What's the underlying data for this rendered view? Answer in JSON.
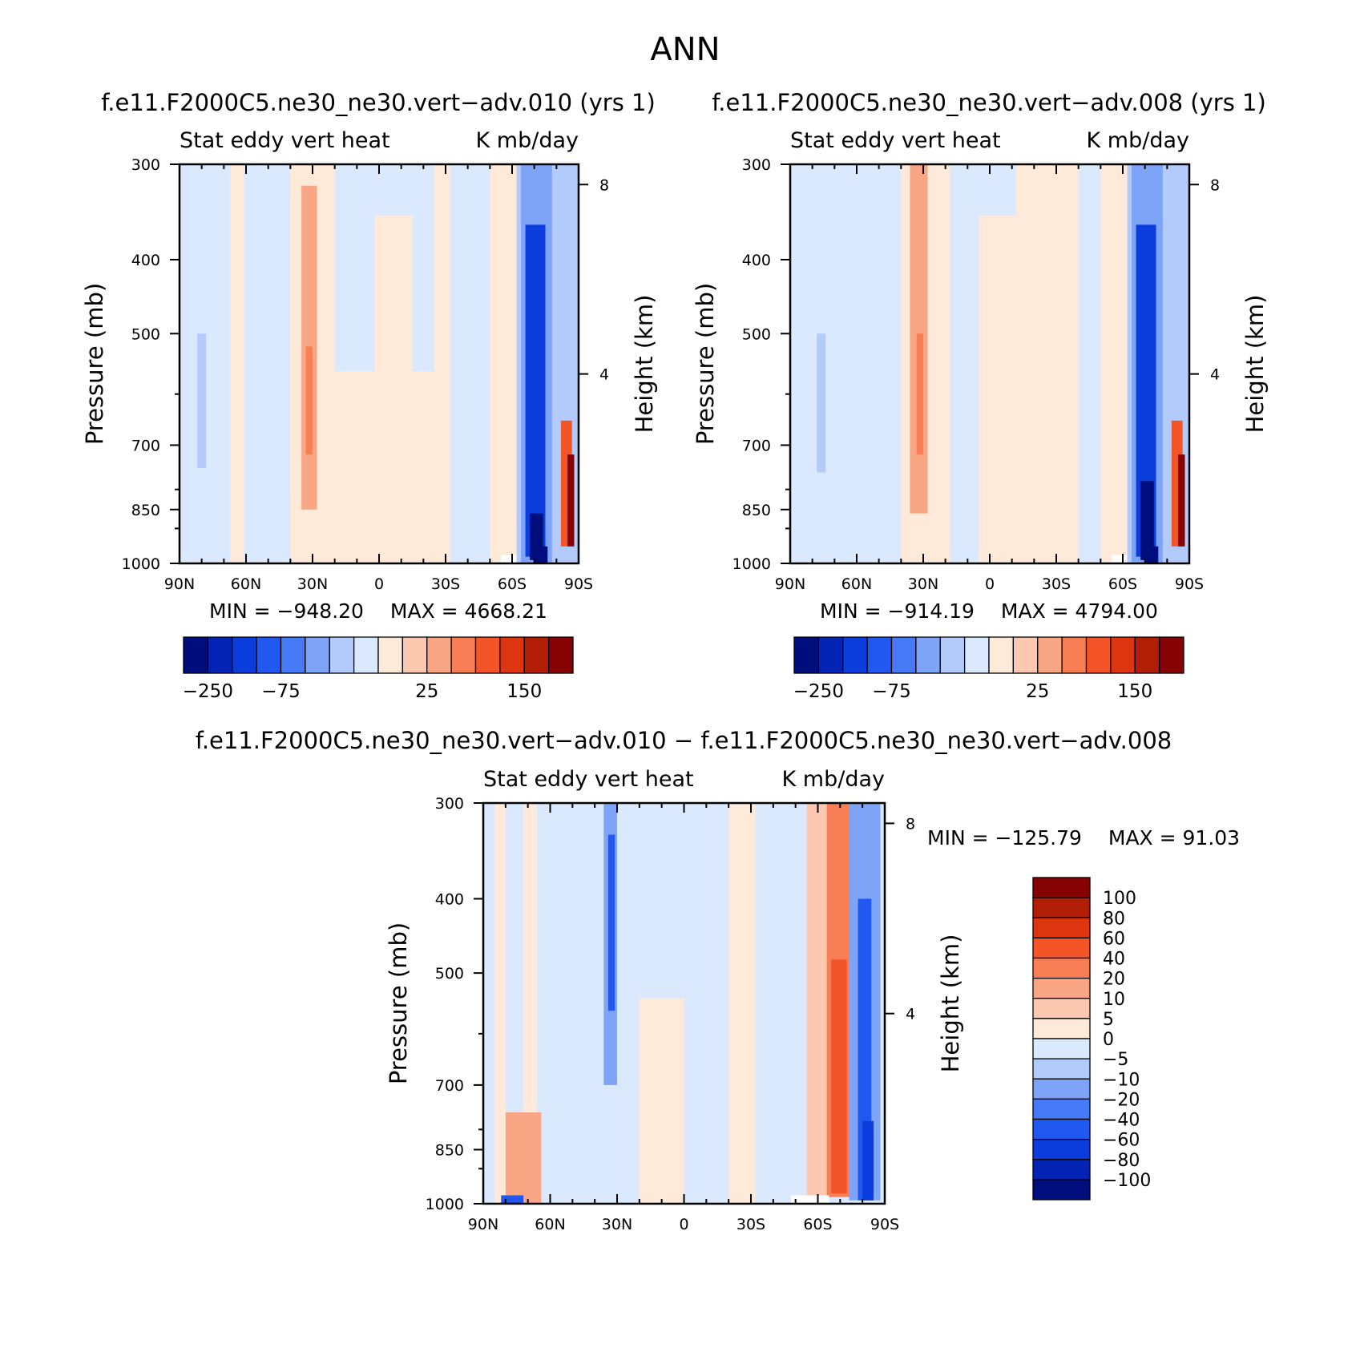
{
  "figure_title": "ANN",
  "palettes": {
    "abs": [
      "#000e7d",
      "#0223b3",
      "#0a3ddb",
      "#2158f0",
      "#4579f5",
      "#7ea4f8",
      "#b3cbfb",
      "#dbe9fe",
      "#ffead9",
      "#fdc8b0",
      "#f9a685",
      "#f77e55",
      "#f45528",
      "#dc3510",
      "#b21d05",
      "#850203"
    ],
    "diff": [
      "#000e7d",
      "#0223b3",
      "#0a3ddb",
      "#2158f0",
      "#4579f5",
      "#7ea4f8",
      "#b3cbfb",
      "#dbe9fe",
      "#ffead9",
      "#fdc8b0",
      "#f9a685",
      "#f77e55",
      "#f45528",
      "#dc3510",
      "#b21d05",
      "#850203"
    ]
  },
  "chart_data": [
    {
      "type": "heatmap",
      "panel": "top-left",
      "title": "f.e11.F2000C5.ne30_ne30.vert−adv.010 (yrs 1)",
      "left_string": "Stat eddy vert heat",
      "right_string": "K mb/day",
      "ylabel": "Pressure (mb)",
      "y2label": "Height (km)",
      "xlim": [
        90,
        -90
      ],
      "ylim": [
        1000,
        300
      ],
      "y_log": true,
      "xticks": [
        "90N",
        "60N",
        "30N",
        "0",
        "30S",
        "60S",
        "90S"
      ],
      "yticks": [
        "300",
        "400",
        "500",
        "700",
        "850",
        "1000"
      ],
      "y2ticks": [
        "8",
        "4"
      ],
      "min_label": "MIN = −948.20",
      "max_label": "MAX = 4668.21",
      "colorbar_ticks": [
        "−250",
        "−75",
        "25",
        "150"
      ],
      "fields": [
        {
          "type": "band",
          "lat": [
            90,
            -62
          ],
          "lev": [
            300,
            1000
          ],
          "value": -2
        },
        {
          "type": "band",
          "lat": [
            67,
            61
          ],
          "lev": [
            300,
            1000
          ],
          "value": 3
        },
        {
          "type": "band",
          "lat": [
            40,
            20
          ],
          "lev": [
            300,
            1000
          ],
          "value": 4
        },
        {
          "type": "band",
          "lat": [
            35,
            28
          ],
          "lev": [
            320,
            850
          ],
          "value": 35
        },
        {
          "type": "band",
          "lat": [
            33,
            30
          ],
          "lev": [
            520,
            720
          ],
          "value": 60
        },
        {
          "type": "band",
          "lat": [
            20,
            -32
          ],
          "lev": [
            560,
            1000
          ],
          "value": 5
        },
        {
          "type": "band",
          "lat": [
            2,
            -15
          ],
          "lev": [
            350,
            1000
          ],
          "value": 3
        },
        {
          "type": "band",
          "lat": [
            -25,
            -32
          ],
          "lev": [
            300,
            1000
          ],
          "value": 4
        },
        {
          "type": "band",
          "lat": [
            -50,
            -62
          ],
          "lev": [
            300,
            1000
          ],
          "value": 6
        },
        {
          "type": "band",
          "lat": [
            -62,
            -90
          ],
          "lev": [
            300,
            1000
          ],
          "value": -12
        },
        {
          "type": "band",
          "lat": [
            -64,
            -78
          ],
          "lev": [
            300,
            1000
          ],
          "value": -45
        },
        {
          "type": "band",
          "lat": [
            -66,
            -75
          ],
          "lev": [
            360,
            980
          ],
          "value": -110
        },
        {
          "type": "band",
          "lat": [
            -68,
            -74
          ],
          "lev": [
            860,
            990
          ],
          "value": -290
        },
        {
          "type": "band",
          "lat": [
            -82,
            -87
          ],
          "lev": [
            650,
            950
          ],
          "value": 80
        },
        {
          "type": "band",
          "lat": [
            -85,
            -88
          ],
          "lev": [
            720,
            950
          ],
          "value": 260
        },
        {
          "type": "band",
          "lat": [
            -70,
            -76
          ],
          "lev": [
            950,
            1000
          ],
          "value": -400
        },
        {
          "type": "band",
          "lat": [
            82,
            78
          ],
          "lev": [
            500,
            750
          ],
          "value": -12
        },
        {
          "type": "band",
          "lat": [
            -55,
            -62
          ],
          "lev": [
            975,
            1000
          ],
          "value": null
        }
      ]
    },
    {
      "type": "heatmap",
      "panel": "top-right",
      "title": "f.e11.F2000C5.ne30_ne30.vert−adv.008 (yrs 1)",
      "left_string": "Stat eddy vert heat",
      "right_string": "K mb/day",
      "ylabel": "Pressure (mb)",
      "y2label": "Height (km)",
      "xlim": [
        90,
        -90
      ],
      "ylim": [
        1000,
        300
      ],
      "y_log": true,
      "xticks": [
        "90N",
        "60N",
        "30N",
        "0",
        "30S",
        "60S",
        "90S"
      ],
      "yticks": [
        "300",
        "400",
        "500",
        "700",
        "850",
        "1000"
      ],
      "y2ticks": [
        "8",
        "4"
      ],
      "min_label": "MIN = −914.19",
      "max_label": "MAX = 4794.00",
      "colorbar_ticks": [
        "−250",
        "−75",
        "25",
        "150"
      ],
      "fields": [
        {
          "type": "band",
          "lat": [
            90,
            -62
          ],
          "lev": [
            300,
            1000
          ],
          "value": -2
        },
        {
          "type": "band",
          "lat": [
            40,
            18
          ],
          "lev": [
            300,
            1000
          ],
          "value": 4
        },
        {
          "type": "band",
          "lat": [
            36,
            28
          ],
          "lev": [
            300,
            860
          ],
          "value": 35
        },
        {
          "type": "band",
          "lat": [
            33,
            30
          ],
          "lev": [
            500,
            720
          ],
          "value": 60
        },
        {
          "type": "band",
          "lat": [
            5,
            -12
          ],
          "lev": [
            350,
            1000
          ],
          "value": 4
        },
        {
          "type": "band",
          "lat": [
            -12,
            -40
          ],
          "lev": [
            300,
            1000
          ],
          "value": 5
        },
        {
          "type": "band",
          "lat": [
            -50,
            -62
          ],
          "lev": [
            300,
            1000
          ],
          "value": 6
        },
        {
          "type": "band",
          "lat": [
            -62,
            -90
          ],
          "lev": [
            300,
            1000
          ],
          "value": -12
        },
        {
          "type": "band",
          "lat": [
            -64,
            -78
          ],
          "lev": [
            300,
            1000
          ],
          "value": -45
        },
        {
          "type": "band",
          "lat": [
            -66,
            -75
          ],
          "lev": [
            360,
            980
          ],
          "value": -110
        },
        {
          "type": "band",
          "lat": [
            -68,
            -74
          ],
          "lev": [
            780,
            990
          ],
          "value": -290
        },
        {
          "type": "band",
          "lat": [
            -82,
            -87
          ],
          "lev": [
            650,
            950
          ],
          "value": 80
        },
        {
          "type": "band",
          "lat": [
            -85,
            -88
          ],
          "lev": [
            720,
            950
          ],
          "value": 260
        },
        {
          "type": "band",
          "lat": [
            -70,
            -76
          ],
          "lev": [
            950,
            1000
          ],
          "value": -400
        },
        {
          "type": "band",
          "lat": [
            78,
            74
          ],
          "lev": [
            500,
            760
          ],
          "value": -12
        },
        {
          "type": "band",
          "lat": [
            -55,
            -62
          ],
          "lev": [
            975,
            1000
          ],
          "value": null
        }
      ]
    },
    {
      "type": "heatmap",
      "panel": "bottom",
      "title": "f.e11.F2000C5.ne30_ne30.vert−adv.010 − f.e11.F2000C5.ne30_ne30.vert−adv.008",
      "left_string": "Stat eddy vert heat",
      "right_string": "K mb/day",
      "ylabel": "Pressure (mb)",
      "y2label": "Height (km)",
      "xlim": [
        90,
        -90
      ],
      "ylim": [
        1000,
        300
      ],
      "y_log": true,
      "xticks": [
        "90N",
        "60N",
        "30N",
        "0",
        "30S",
        "60S",
        "90S"
      ],
      "yticks": [
        "300",
        "400",
        "500",
        "700",
        "850",
        "1000"
      ],
      "y2ticks": [
        "8",
        "4"
      ],
      "min_label": "MIN = −125.79",
      "max_label": "MAX =   91.03",
      "colorbar_levels": [
        "100",
        "80",
        "60",
        "40",
        "20",
        "10",
        "5",
        "0",
        "−5",
        "−10",
        "−20",
        "−40",
        "−60",
        "−80",
        "−100"
      ],
      "fields": [
        {
          "type": "band",
          "lat": [
            90,
            -90
          ],
          "lev": [
            300,
            1000
          ],
          "value": -2
        },
        {
          "type": "band",
          "lat": [
            85,
            80
          ],
          "lev": [
            300,
            1000
          ],
          "value": 2
        },
        {
          "type": "band",
          "lat": [
            72,
            66
          ],
          "lev": [
            300,
            1000
          ],
          "value": 3
        },
        {
          "type": "band",
          "lat": [
            80,
            64
          ],
          "lev": [
            760,
            1000
          ],
          "value": 12
        },
        {
          "type": "band",
          "lat": [
            36,
            30
          ],
          "lev": [
            300,
            700
          ],
          "value": -18
        },
        {
          "type": "band",
          "lat": [
            34,
            31
          ],
          "lev": [
            330,
            560
          ],
          "value": -45
        },
        {
          "type": "band",
          "lat": [
            20,
            0
          ],
          "lev": [
            540,
            1000
          ],
          "value": 3
        },
        {
          "type": "band",
          "lat": [
            -20,
            -32
          ],
          "lev": [
            300,
            1000
          ],
          "value": 2
        },
        {
          "type": "band",
          "lat": [
            -55,
            -68
          ],
          "lev": [
            300,
            980
          ],
          "value": 8
        },
        {
          "type": "band",
          "lat": [
            -64,
            -75
          ],
          "lev": [
            300,
            980
          ],
          "value": 30
        },
        {
          "type": "band",
          "lat": [
            -66,
            -73
          ],
          "lev": [
            480,
            970
          ],
          "value": 50
        },
        {
          "type": "band",
          "lat": [
            -74,
            -88
          ],
          "lev": [
            300,
            990
          ],
          "value": -18
        },
        {
          "type": "band",
          "lat": [
            -78,
            -84
          ],
          "lev": [
            400,
            990
          ],
          "value": -45
        },
        {
          "type": "band",
          "lat": [
            -80,
            -85
          ],
          "lev": [
            780,
            990
          ],
          "value": -65
        },
        {
          "type": "band",
          "lat": [
            82,
            72
          ],
          "lev": [
            975,
            1000
          ],
          "value": -50
        },
        {
          "type": "band",
          "lat": [
            -48,
            -65
          ],
          "lev": [
            975,
            1000
          ],
          "value": null
        }
      ]
    }
  ]
}
